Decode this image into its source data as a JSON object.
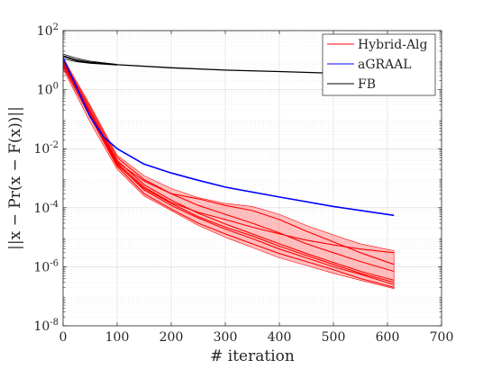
{
  "chart_data": {
    "type": "line",
    "title": "",
    "xlabel": "# iteration",
    "ylabel": "||x − Pr(x − F(x))||",
    "x_scale": "linear",
    "y_scale": "log",
    "xlim": [
      0,
      700
    ],
    "ylim": [
      1e-08,
      100
    ],
    "x_ticks": [
      0,
      100,
      200,
      300,
      400,
      500,
      600,
      700
    ],
    "x_tick_labels": [
      "0",
      "100",
      "200",
      "300",
      "400",
      "500",
      "600",
      "700"
    ],
    "y_ticks": [
      1e-08,
      1e-06,
      0.0001,
      0.01,
      1,
      100
    ],
    "y_tick_labels": [
      {
        "base": "10",
        "exp": "-8"
      },
      {
        "base": "10",
        "exp": "-6"
      },
      {
        "base": "10",
        "exp": "-4"
      },
      {
        "base": "10",
        "exp": "-2"
      },
      {
        "base": "10",
        "exp": "0"
      },
      {
        "base": "10",
        "exp": "2"
      }
    ],
    "grid": true,
    "minor_grid": true,
    "legend_position": "top-right",
    "series": [
      {
        "name": "Hybrid-Alg",
        "color": "#ff0000",
        "band": {
          "x": [
            0,
            50,
            100,
            150,
            200,
            250,
            300,
            350,
            400,
            450,
            500,
            550,
            612
          ],
          "upper": [
            12,
            0.3,
            0.006,
            0.0012,
            0.00045,
            0.00022,
            0.00014,
            0.00011,
            6e-05,
            2.5e-05,
            1.2e-05,
            6e-06,
            3.5e-06
          ],
          "lower": [
            5,
            0.08,
            0.002,
            0.00025,
            8e-05,
            2.5e-05,
            1e-05,
            4.5e-06,
            2e-06,
            1.1e-06,
            6e-07,
            3.5e-07,
            1.8e-07
          ]
        },
        "runs": [
          {
            "x": [
              0,
              50,
              100,
              150,
              200,
              250,
              300,
              350,
              400,
              450,
              500,
              550,
              612
            ],
            "y": [
              7,
              0.15,
              0.003,
              0.0004,
              0.00012,
              4.5e-05,
              1.9e-05,
              9e-06,
              4e-06,
              2e-06,
              1e-06,
              5.5e-07,
              2.5e-07
            ]
          },
          {
            "x": [
              0,
              50,
              100,
              150,
              200,
              250,
              300,
              350,
              400,
              450,
              500,
              550,
              612
            ],
            "y": [
              9,
              0.2,
              0.004,
              0.0006,
              0.00018,
              6.5e-05,
              2.8e-05,
              1.3e-05,
              6e-06,
              2.8e-06,
              1.4e-06,
              7e-07,
              3.5e-07
            ]
          },
          {
            "x": [
              0,
              50,
              100,
              150,
              200,
              250,
              300,
              350,
              400,
              450,
              500,
              550,
              612
            ],
            "y": [
              6,
              0.12,
              0.0025,
              0.0003,
              9e-05,
              3e-05,
              1.3e-05,
              6e-06,
              2.8e-06,
              1.5e-06,
              8e-07,
              4e-07,
              2e-07
            ]
          },
          {
            "x": [
              0,
              50,
              100,
              150,
              200,
              250,
              300,
              350,
              400,
              450,
              500,
              550,
              612
            ],
            "y": [
              10,
              0.25,
              0.005,
              0.0009,
              0.0003,
              0.00012,
              6e-05,
              3e-05,
              1.4e-05,
              6e-06,
              3e-06,
              1.5e-06,
              7e-07
            ]
          },
          {
            "x": [
              0,
              50,
              100,
              150,
              200,
              250,
              300,
              350,
              400,
              450,
              500,
              550,
              612
            ],
            "y": [
              8,
              0.18,
              0.0035,
              0.0008,
              0.0003,
              0.0002,
              0.00012,
              8e-05,
              4e-05,
              1.6e-05,
              7e-06,
              3e-06,
              1.2e-06
            ]
          },
          {
            "x": [
              0,
              50,
              100,
              150,
              200,
              250,
              300,
              350,
              400,
              450,
              500,
              550,
              612
            ],
            "y": [
              7.5,
              0.16,
              0.0032,
              0.0005,
              0.00015,
              7e-05,
              4e-05,
              2.2e-05,
              1.3e-05,
              8e-06,
              5.5e-06,
              4e-06,
              3e-06
            ]
          },
          {
            "x": [
              0,
              50,
              100,
              150,
              200,
              250,
              300,
              350,
              400,
              450,
              500,
              550,
              612
            ],
            "y": [
              8.5,
              0.14,
              0.0028,
              0.00045,
              0.00014,
              5e-05,
              2.2e-05,
              1.1e-05,
              5e-06,
              2.4e-06,
              1.2e-06,
              6e-07,
              3e-07
            ]
          }
        ]
      },
      {
        "name": "aGRAAL",
        "color": "#0000ff",
        "x": [
          0,
          25,
          50,
          75,
          100,
          150,
          200,
          250,
          300,
          400,
          500,
          612
        ],
        "y": [
          12,
          1.2,
          0.12,
          0.025,
          0.01,
          0.003,
          0.0015,
          0.00085,
          0.0005,
          0.00023,
          0.00011,
          5.5e-05
        ]
      },
      {
        "name": "FB",
        "color": "#000000",
        "x": [
          0,
          25,
          50,
          100,
          200,
          300,
          400,
          500,
          612
        ],
        "y": [
          14,
          10,
          8.5,
          7,
          5.5,
          4.6,
          4.1,
          3.6,
          3.2
        ],
        "runs": [
          {
            "x": [
              0,
              25,
              50,
              100
            ],
            "y": [
              16,
              11.5,
              9.2,
              7.2
            ]
          },
          {
            "x": [
              0,
              25,
              50,
              100
            ],
            "y": [
              13,
              9.3,
              8.0,
              6.9
            ]
          },
          {
            "x": [
              0,
              25,
              50,
              100
            ],
            "y": [
              11,
              8.8,
              7.8,
              6.8
            ]
          }
        ]
      }
    ]
  }
}
